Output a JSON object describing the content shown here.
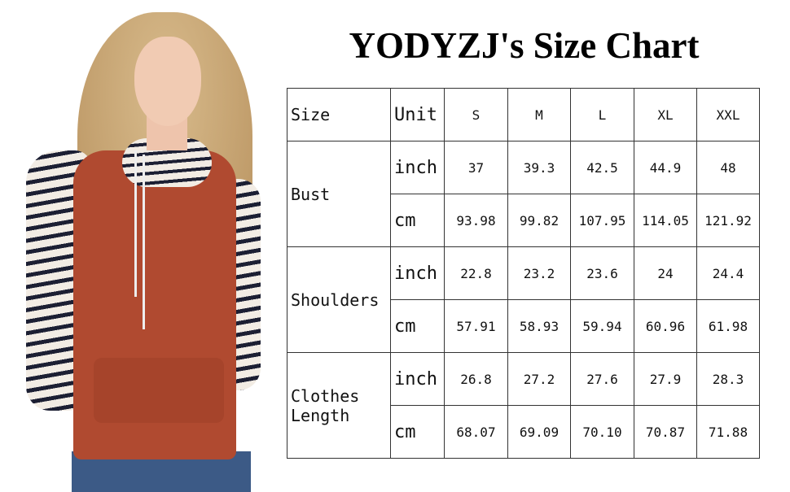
{
  "title": "YODYZJ's Size Chart",
  "table": {
    "header": {
      "size": "Size",
      "unit": "Unit",
      "sizes": [
        "S",
        "M",
        "L",
        "XL",
        "XXL"
      ]
    },
    "rows": [
      {
        "measure": "Bust",
        "inch": [
          "37",
          "39.3",
          "42.5",
          "44.9",
          "48"
        ],
        "cm": [
          "93.98",
          "99.82",
          "107.95",
          "114.05",
          "121.92"
        ]
      },
      {
        "measure": "Shoulders",
        "inch": [
          "22.8",
          "23.2",
          "23.6",
          "24",
          "24.4"
        ],
        "cm": [
          "57.91",
          "58.93",
          "59.94",
          "60.96",
          "61.98"
        ]
      },
      {
        "measure": "Clothes Length",
        "inch": [
          "26.8",
          "27.2",
          "27.6",
          "27.9",
          "28.3"
        ],
        "cm": [
          "68.07",
          "69.09",
          "70.10",
          "70.87",
          "71.88"
        ]
      }
    ],
    "units": {
      "inch": "inch",
      "cm": "cm"
    }
  },
  "colors": {
    "hoodie": "#b04a30",
    "stripe_dark": "#1c1f33",
    "hair": "#c9a87a"
  }
}
